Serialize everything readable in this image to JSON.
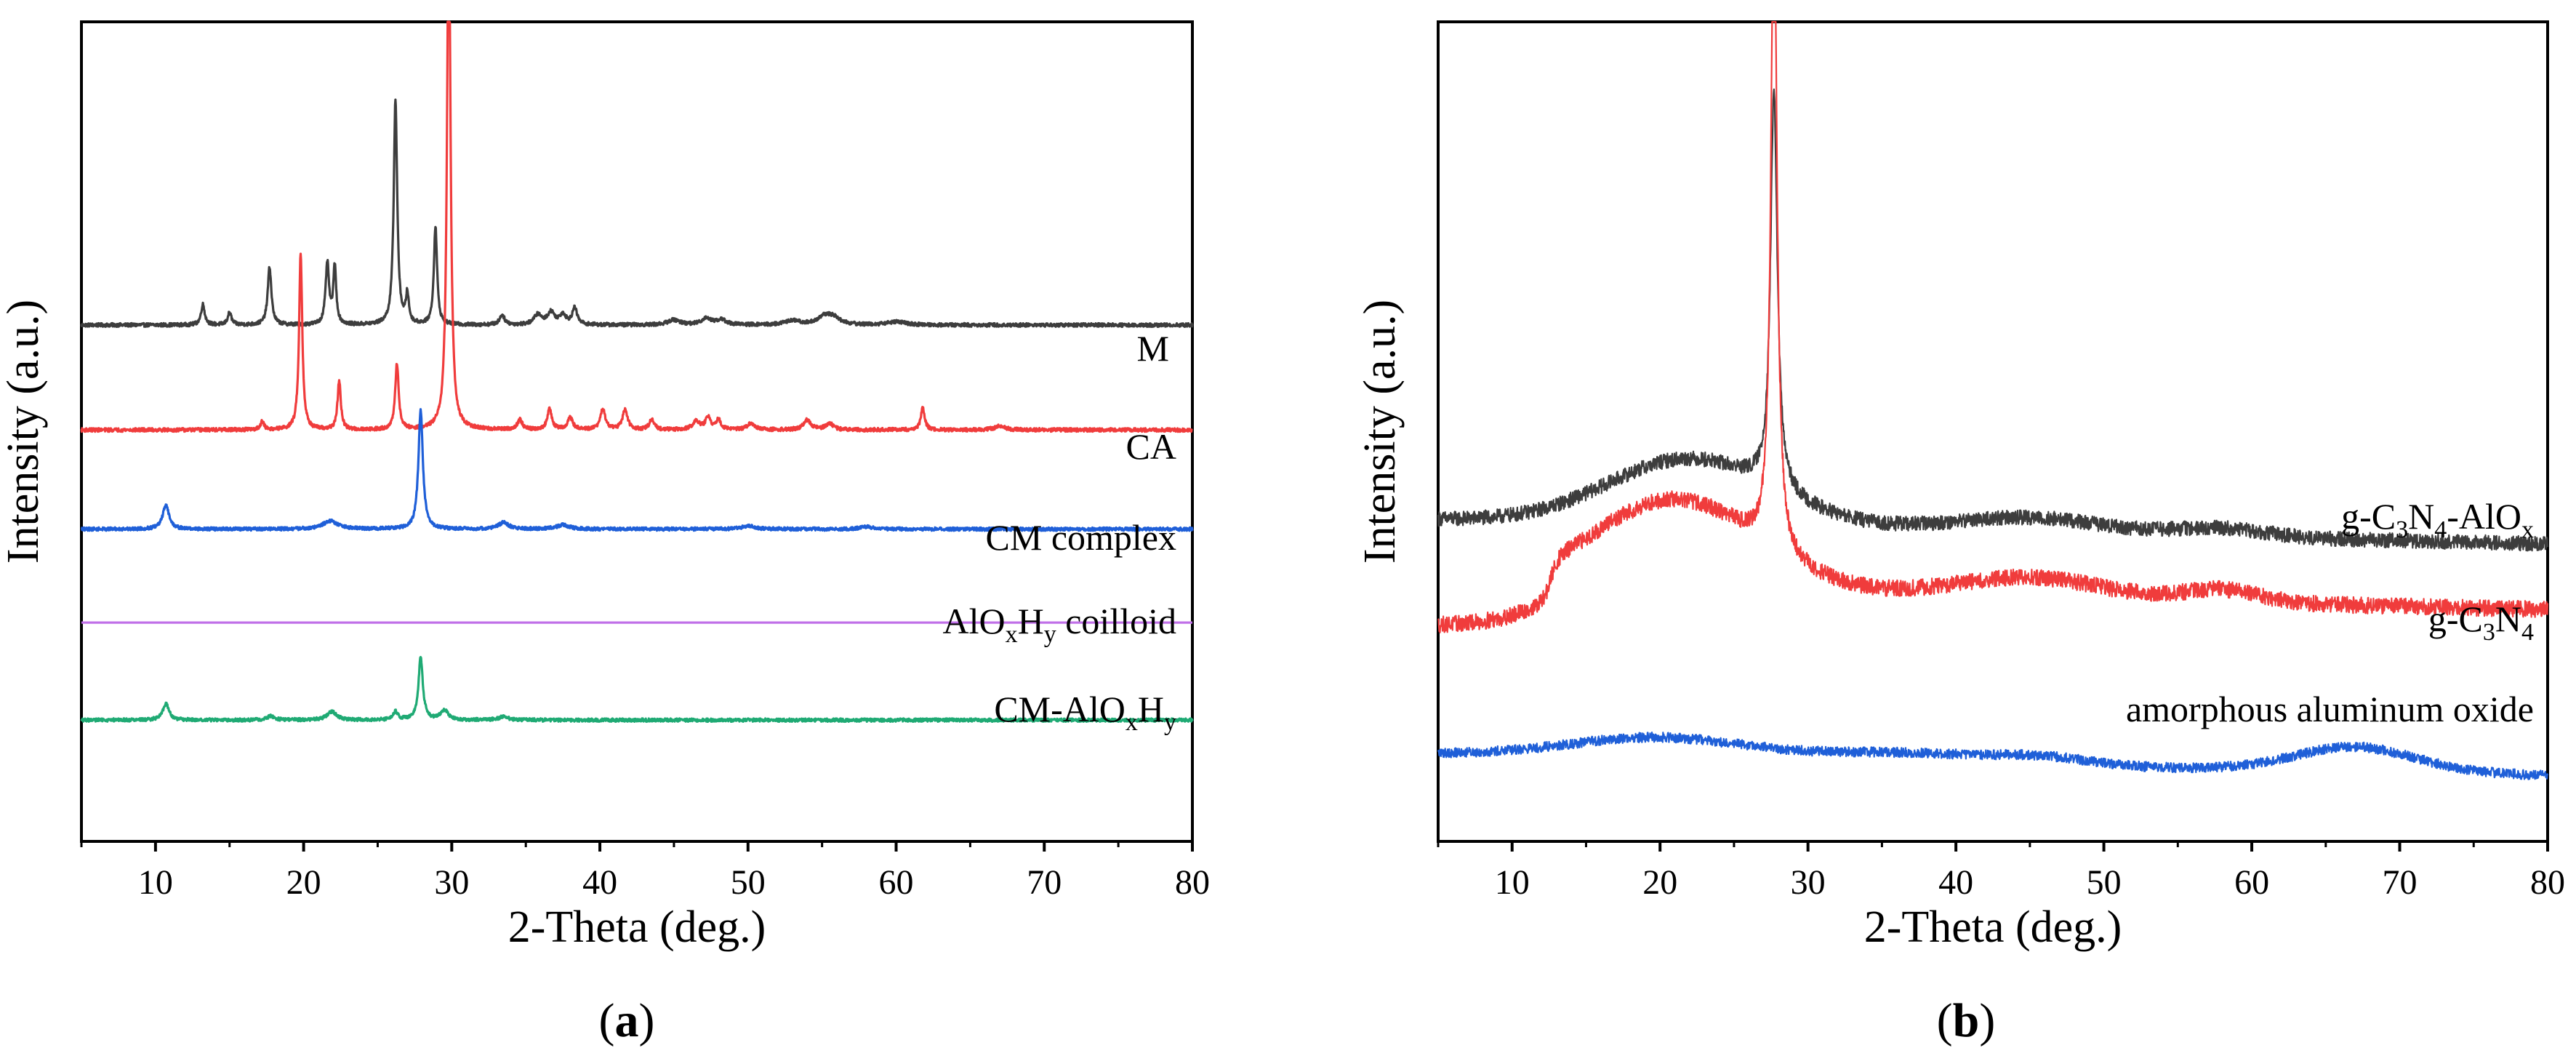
{
  "figure": {
    "caption_a": "(a)",
    "caption_b": "(b)",
    "caption_a_parts": [
      "(",
      "a",
      ")"
    ],
    "caption_b_parts": [
      "(",
      "b",
      ")"
    ]
  },
  "chart_data": [
    {
      "type": "line",
      "title": "",
      "xlabel": "2-Theta (deg.)",
      "ylabel": "Intensity (a.u.)",
      "xlim": [
        5,
        80
      ],
      "ylim": [
        0,
        100
      ],
      "xticks": [
        10,
        20,
        30,
        40,
        50,
        60,
        70,
        80
      ],
      "grid": false,
      "series": [
        {
          "name": "M",
          "label_parts": [
            {
              "t": "M",
              "s": "n"
            }
          ],
          "color": "#3d3d3d",
          "baseline": 63,
          "noise": 0.22,
          "peaks": [
            [
              13.2,
              2.5,
              0.15
            ],
            [
              15.0,
              1.5,
              0.15
            ],
            [
              17.7,
              7,
              0.15
            ],
            [
              21.6,
              7.5,
              0.14
            ],
            [
              22.1,
              7,
              0.12
            ],
            [
              26.2,
              27.5,
              0.14
            ],
            [
              27.0,
              3.5,
              0.12
            ],
            [
              28.9,
              12,
              0.13
            ],
            [
              33.4,
              1.2,
              0.2
            ],
            [
              35.8,
              1.2,
              0.3
            ],
            [
              36.7,
              1.5,
              0.3
            ],
            [
              37.5,
              1.2,
              0.25
            ],
            [
              38.3,
              2,
              0.2
            ],
            [
              45.0,
              0.6,
              0.5
            ],
            [
              47.2,
              0.8,
              0.4
            ],
            [
              48.2,
              0.6,
              0.4
            ],
            [
              53.0,
              0.5,
              0.6
            ],
            [
              55.2,
              1.0,
              0.6
            ],
            [
              55.8,
              0.7,
              0.5
            ],
            [
              60.0,
              0.4,
              0.7
            ]
          ]
        },
        {
          "name": "CA",
          "label_parts": [
            {
              "t": "CA",
              "s": "n"
            }
          ],
          "color": "#f03c3c",
          "baseline": 50.2,
          "noise": 0.22,
          "peaks": [
            [
              17.2,
              1.0,
              0.15
            ],
            [
              19.8,
              21.5,
              0.13
            ],
            [
              22.4,
              6,
              0.13
            ],
            [
              26.3,
              8,
              0.14
            ],
            [
              29.8,
              64,
              0.14
            ],
            [
              34.6,
              1.2,
              0.2
            ],
            [
              36.6,
              2.5,
              0.18
            ],
            [
              38.0,
              1.5,
              0.2
            ],
            [
              40.2,
              2.5,
              0.2
            ],
            [
              41.7,
              2.5,
              0.2
            ],
            [
              43.5,
              1.2,
              0.2
            ],
            [
              46.5,
              1.0,
              0.3
            ],
            [
              47.3,
              1.5,
              0.2
            ],
            [
              48.0,
              1.2,
              0.2
            ],
            [
              50.2,
              0.8,
              0.3
            ],
            [
              54.0,
              1.2,
              0.3
            ],
            [
              55.5,
              0.8,
              0.3
            ],
            [
              61.8,
              2.8,
              0.15
            ],
            [
              67.0,
              0.5,
              0.4
            ]
          ]
        },
        {
          "name": "CM complex",
          "label_parts": [
            {
              "t": "CM complex",
              "s": "n"
            }
          ],
          "color": "#1f5fd8",
          "baseline": 38.1,
          "noise": 0.2,
          "peaks": [
            [
              10.7,
              3,
              0.25
            ],
            [
              21.8,
              1.0,
              0.6
            ],
            [
              27.9,
              14.5,
              0.18
            ],
            [
              33.5,
              0.8,
              0.4
            ],
            [
              37.5,
              0.5,
              0.5
            ],
            [
              50.0,
              0.4,
              0.5
            ],
            [
              58.0,
              0.3,
              0.5
            ]
          ]
        },
        {
          "name": "AlOxHy coilloid",
          "label_parts": [
            {
              "t": "AlO",
              "s": "n"
            },
            {
              "t": "x",
              "s": "sub"
            },
            {
              "t": "H",
              "s": "n"
            },
            {
              "t": "y",
              "s": "sub"
            },
            {
              "t": " coilloid",
              "s": "n"
            }
          ],
          "color": "#c070e8",
          "baseline": 26.7,
          "noise": 0.0,
          "peaks": []
        },
        {
          "name": "CM-AlOxHy",
          "label_parts": [
            {
              "t": "CM-AlO",
              "s": "n"
            },
            {
              "t": "x",
              "s": "sub"
            },
            {
              "t": "H",
              "s": "n"
            },
            {
              "t": "y",
              "s": "sub"
            }
          ],
          "color": "#1faa74",
          "baseline": 14.8,
          "noise": 0.2,
          "peaks": [
            [
              10.7,
              2,
              0.25
            ],
            [
              17.8,
              0.5,
              0.3
            ],
            [
              21.9,
              1.0,
              0.4
            ],
            [
              26.2,
              1.0,
              0.2
            ],
            [
              27.9,
              7.5,
              0.18
            ],
            [
              29.5,
              1.2,
              0.3
            ],
            [
              33.5,
              0.4,
              0.4
            ]
          ]
        }
      ]
    },
    {
      "type": "line",
      "title": "",
      "xlabel": "2-Theta (deg.)",
      "ylabel": "Intensity (a.u.)",
      "xlim": [
        5,
        80
      ],
      "ylim": [
        0,
        100
      ],
      "xticks": [
        10,
        20,
        30,
        40,
        50,
        60,
        70,
        80
      ],
      "grid": false,
      "series": [
        {
          "name": "g-C3N4-AlOx",
          "label_parts": [
            {
              "t": "g-C",
              "s": "n"
            },
            {
              "t": "3",
              "s": "sub"
            },
            {
              "t": "N",
              "s": "n"
            },
            {
              "t": "4",
              "s": "sub"
            },
            {
              "t": "-AlO",
              "s": "n"
            },
            {
              "t": "x",
              "s": "sub"
            }
          ],
          "color": "#3d3d3d",
          "baseline": 39.3,
          "slope": -0.04,
          "noise": 0.9,
          "humps": [
            [
              22,
              8,
              5.5
            ],
            [
              45,
              1.8,
              5
            ],
            [
              58,
              1.0,
              3
            ]
          ],
          "peaks": [
            [
              27.7,
              48,
              0.28
            ]
          ]
        },
        {
          "name": "g-C3N4",
          "label_parts": [
            {
              "t": "g-C",
              "s": "n"
            },
            {
              "t": "3",
              "s": "sub"
            },
            {
              "t": "N",
              "s": "n"
            },
            {
              "t": "4",
              "s": "sub"
            }
          ],
          "color": "#f03c3c",
          "baseline": 26.3,
          "slope": -0.04,
          "noise": 1.0,
          "humps": [
            [
              21,
              11,
              5.5
            ],
            [
              45,
              2.5,
              5
            ],
            [
              58,
              1.5,
              2.5
            ]
          ],
          "steps": [
            [
              12.6,
              5
            ]
          ],
          "peaks": [
            [
              27.7,
              83,
              0.24
            ]
          ]
        },
        {
          "name": "amorphous aluminum oxide",
          "label_parts": [
            {
              "t": "amorphous aluminum oxide",
              "s": "n"
            }
          ],
          "color": "#1f5fd8",
          "baseline": 10.7,
          "slope": -0.035,
          "noise": 0.6,
          "humps": [
            [
              20,
              2.5,
              6
            ],
            [
              37,
              1.2,
              6
            ],
            [
              46,
              0.8,
              3
            ],
            [
              67,
              3,
              4
            ]
          ],
          "peaks": []
        }
      ]
    }
  ]
}
